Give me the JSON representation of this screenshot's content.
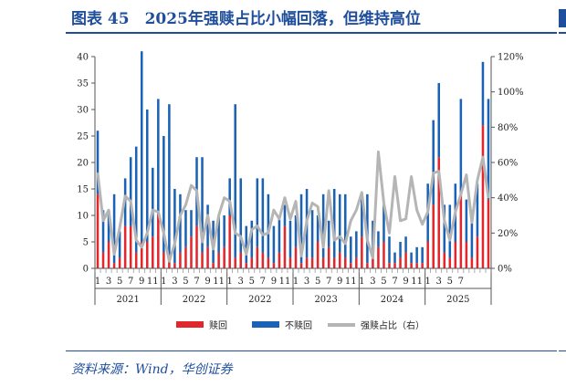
{
  "figure": {
    "title": "图表 45　2025年强赎占比小幅回落，但维持高位",
    "source": "资料来源：Wind，华创证券"
  },
  "colors": {
    "redeemed": "#e3262c",
    "not_redeemed": "#1a62b5",
    "ratio": "#b5b5b5",
    "accent": "#1f4e9c"
  },
  "chart_data": {
    "type": "bar",
    "left_axis": {
      "min": 0,
      "max": 40,
      "ticks": [
        "0",
        "5",
        "10",
        "15",
        "20",
        "25",
        "30",
        "35",
        "40"
      ]
    },
    "right_axis": {
      "min": 0,
      "max": 120,
      "ticks": [
        "0%",
        "20%",
        "40%",
        "60%",
        "80%",
        "100%",
        "120%"
      ]
    },
    "year_labels": [
      "2021",
      "2022",
      "2022",
      "2023",
      "2024",
      "2025"
    ],
    "month_labels": [
      "1",
      "3",
      "5",
      "7",
      "9",
      "11",
      "1",
      "3",
      "5",
      "7",
      "9",
      "11",
      "1",
      "3",
      "5",
      "7",
      "9",
      "11",
      "1",
      "3",
      "5",
      "7",
      "9",
      "11",
      "1",
      "3",
      "5",
      "7",
      "9",
      "11",
      "1",
      "3",
      "5",
      "7"
    ],
    "legend": {
      "redeemed": "赎回",
      "not_redeemed": "不赎回",
      "ratio": "强赎占比（右）"
    },
    "series": [
      {
        "name": "赎回",
        "values": [
          14,
          3,
          5,
          1,
          2,
          8,
          8,
          3,
          5,
          5,
          6,
          10,
          3,
          2,
          1,
          3,
          4,
          6,
          8,
          3,
          4,
          1,
          3,
          4,
          10,
          2,
          3,
          1,
          2,
          4,
          3,
          2,
          1,
          3,
          8,
          2,
          4,
          1,
          2,
          2,
          5,
          2,
          4,
          2,
          3,
          2,
          1,
          2,
          6,
          1,
          3,
          4,
          5,
          1,
          1,
          2,
          3,
          1,
          1,
          1,
          5,
          12,
          21,
          3,
          2,
          5,
          14,
          5,
          2,
          6,
          27,
          13
        ],
        "axis": "left"
      },
      {
        "name": "不赎回",
        "values": [
          12,
          8,
          6,
          13,
          5,
          9,
          13,
          20,
          36,
          25,
          13,
          22,
          22,
          29,
          14,
          11,
          7,
          5,
          13,
          18,
          8,
          8,
          7,
          6,
          7,
          29,
          14,
          7,
          7,
          13,
          14,
          12,
          7,
          7,
          4,
          7,
          6,
          13,
          13,
          9,
          5,
          12,
          5,
          13,
          11,
          12,
          5,
          5,
          8,
          13,
          6,
          3,
          7,
          5,
          2,
          3,
          3,
          2,
          3,
          3,
          11,
          16,
          14,
          9,
          10,
          11,
          18,
          8,
          9,
          10,
          12,
          19
        ],
        "axis": "left"
      },
      {
        "name": "强赎占比（右）",
        "values": [
          54,
          27,
          33,
          8,
          23,
          41,
          38,
          16,
          12,
          20,
          33,
          32,
          20,
          4,
          14,
          30,
          36,
          47,
          44,
          15,
          30,
          11,
          30,
          40,
          38,
          20,
          18,
          8,
          22,
          24,
          19,
          20,
          33,
          28,
          40,
          28,
          38,
          7,
          27,
          37,
          35,
          12,
          44,
          16,
          18,
          14,
          27,
          33,
          43,
          16,
          6,
          66,
          37,
          20,
          52,
          27,
          28,
          52,
          33,
          25,
          32,
          54,
          55,
          27,
          16,
          32,
          42,
          53,
          26,
          50,
          63,
          40
        ],
        "axis": "right"
      }
    ]
  }
}
